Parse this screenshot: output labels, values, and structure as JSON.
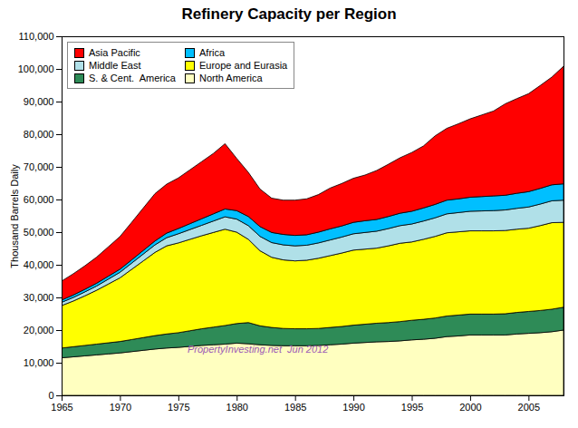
{
  "chart_data": {
    "type": "area",
    "stacked": true,
    "title": "Refinery Capacity per Region",
    "ylabel": "Thousand Barrels Daily",
    "x": [
      1965,
      1966,
      1967,
      1968,
      1969,
      1970,
      1971,
      1972,
      1973,
      1974,
      1975,
      1976,
      1977,
      1978,
      1979,
      1980,
      1981,
      1982,
      1983,
      1984,
      1985,
      1986,
      1987,
      1988,
      1989,
      1990,
      1991,
      1992,
      1993,
      1994,
      1995,
      1996,
      1997,
      1998,
      1999,
      2000,
      2001,
      2002,
      2003,
      2004,
      2005,
      2006,
      2007,
      2008
    ],
    "series": [
      {
        "name": "North America",
        "color": "#FFFFC0",
        "values": [
          11500,
          11800,
          12100,
          12400,
          12700,
          13000,
          13400,
          13800,
          14200,
          14500,
          14700,
          15000,
          15300,
          15500,
          15700,
          16000,
          15800,
          15500,
          15300,
          15200,
          15200,
          15200,
          15300,
          15500,
          15700,
          16000,
          16200,
          16400,
          16500,
          16700,
          17000,
          17200,
          17500,
          18000,
          18200,
          18500,
          18500,
          18500,
          18500,
          18800,
          19000,
          19200,
          19500,
          20000
        ]
      },
      {
        "name": "S. & Cent.  America",
        "color": "#2E8B57",
        "values": [
          3000,
          3100,
          3200,
          3300,
          3400,
          3500,
          3700,
          3900,
          4100,
          4300,
          4500,
          4800,
          5100,
          5400,
          5700,
          6000,
          6500,
          5800,
          5500,
          5300,
          5200,
          5200,
          5200,
          5300,
          5400,
          5500,
          5600,
          5700,
          5800,
          5900,
          6000,
          6100,
          6200,
          6300,
          6400,
          6400,
          6400,
          6400,
          6500,
          6600,
          6700,
          6800,
          6900,
          7000
        ]
      },
      {
        "name": "Europe and Eurasia",
        "color": "#FFFF00",
        "values": [
          13000,
          14000,
          15200,
          16500,
          18000,
          19500,
          21500,
          23500,
          25500,
          27000,
          27500,
          28000,
          28500,
          29000,
          29500,
          28000,
          25500,
          23000,
          21500,
          21000,
          20800,
          21000,
          21500,
          22000,
          22500,
          23000,
          23000,
          23000,
          23500,
          24000,
          24000,
          24500,
          25000,
          25500,
          25500,
          25500,
          25500,
          25500,
          25500,
          25500,
          25500,
          26000,
          26500,
          26000
        ]
      },
      {
        "name": "Middle East",
        "color": "#B0E0E8",
        "values": [
          1000,
          1100,
          1200,
          1300,
          1500,
          1700,
          1900,
          2100,
          2300,
          2500,
          2800,
          3000,
          3200,
          3500,
          3800,
          4000,
          4200,
          4400,
          4500,
          4600,
          4600,
          4600,
          4700,
          4800,
          4900,
          5000,
          5100,
          5200,
          5300,
          5400,
          5500,
          5600,
          5700,
          5800,
          5900,
          6000,
          6100,
          6200,
          6300,
          6400,
          6500,
          6600,
          6700,
          6800
        ]
      },
      {
        "name": "Africa",
        "color": "#00BFFF",
        "values": [
          700,
          750,
          800,
          850,
          900,
          950,
          1000,
          1100,
          1200,
          1400,
          1600,
          1800,
          2000,
          2200,
          2400,
          2600,
          2800,
          3000,
          3100,
          3200,
          3200,
          3200,
          3300,
          3400,
          3400,
          3500,
          3600,
          3600,
          3700,
          3800,
          3900,
          4000,
          4100,
          4200,
          4200,
          4300,
          4400,
          4500,
          4500,
          4600,
          4700,
          4800,
          4900,
          5000
        ]
      },
      {
        "name": "Asia Pacific",
        "color": "#FF0000",
        "values": [
          5800,
          6500,
          7200,
          8000,
          9000,
          10000,
          11500,
          13000,
          14500,
          15000,
          15500,
          16500,
          17500,
          18500,
          20000,
          16000,
          13500,
          11500,
          10500,
          10500,
          10800,
          11000,
          11500,
          12500,
          13000,
          13500,
          14000,
          15000,
          16000,
          17000,
          18000,
          19000,
          21000,
          22000,
          23000,
          24000,
          25000,
          26000,
          28000,
          29000,
          30000,
          31500,
          33000,
          36000
        ]
      }
    ],
    "xlim": [
      1965,
      2008
    ],
    "xticks": [
      1965,
      1970,
      1975,
      1980,
      1985,
      1990,
      1995,
      2000,
      2005
    ],
    "ylim": [
      0,
      110000
    ],
    "yticks": [
      0,
      {
        "value": 10000,
        "label": "10,000"
      },
      {
        "value": 20000,
        "label": "20,000"
      },
      {
        "value": 30000,
        "label": "30,000"
      },
      {
        "value": 40000,
        "label": "40,000"
      },
      {
        "value": 50000,
        "label": "50,000"
      },
      {
        "value": 60000,
        "label": "60,000"
      },
      {
        "value": 70000,
        "label": "70,000"
      },
      {
        "value": 80000,
        "label": "80,000"
      },
      {
        "value": 90000,
        "label": "90,000"
      },
      {
        "value": 100000,
        "label": "100,000"
      },
      {
        "value": 110000,
        "label": "110,000"
      }
    ],
    "grid": false,
    "legend": "upper left",
    "annotations": [
      {
        "text": "PropertyInvesting.net  Jun 2012",
        "color": "#9B59B6"
      }
    ]
  }
}
